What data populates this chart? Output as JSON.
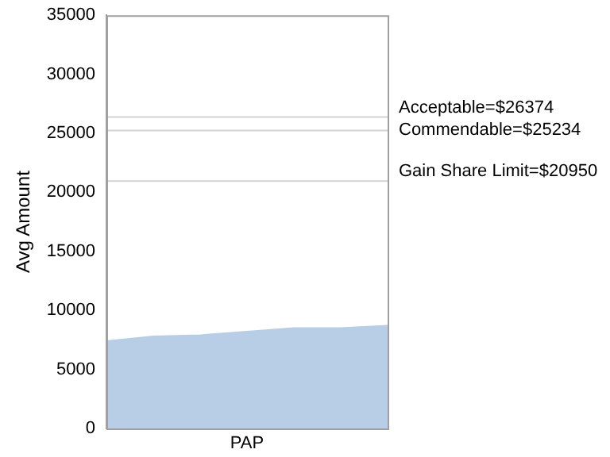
{
  "chart_data": {
    "type": "area",
    "ylabel": "Avg Amount",
    "categories": [
      null,
      null,
      null,
      null,
      null,
      null,
      null
    ],
    "annotations": [
      "PAP"
    ],
    "series": [
      {
        "color": "#b8cde6",
        "values": [
          7400,
          7800,
          7900,
          8200,
          8500,
          8500,
          8700
        ]
      }
    ],
    "ylim": [
      0,
      35000
    ],
    "yticks": [
      0,
      5000,
      10000,
      15000,
      20000,
      25000,
      30000,
      35000
    ],
    "grid": false,
    "legend": false,
    "ref_lines": [
      {
        "axis": "y",
        "value": 26374,
        "label": "Acceptable=$26374",
        "color": "#d3d3d3"
      },
      {
        "axis": "y",
        "value": 25234,
        "label": "Commendable=$25234",
        "color": "#d3d3d3"
      },
      {
        "axis": "y",
        "value": 20950,
        "label": "Gain Share Limit=$20950",
        "color": "#d3d3d3"
      }
    ]
  }
}
